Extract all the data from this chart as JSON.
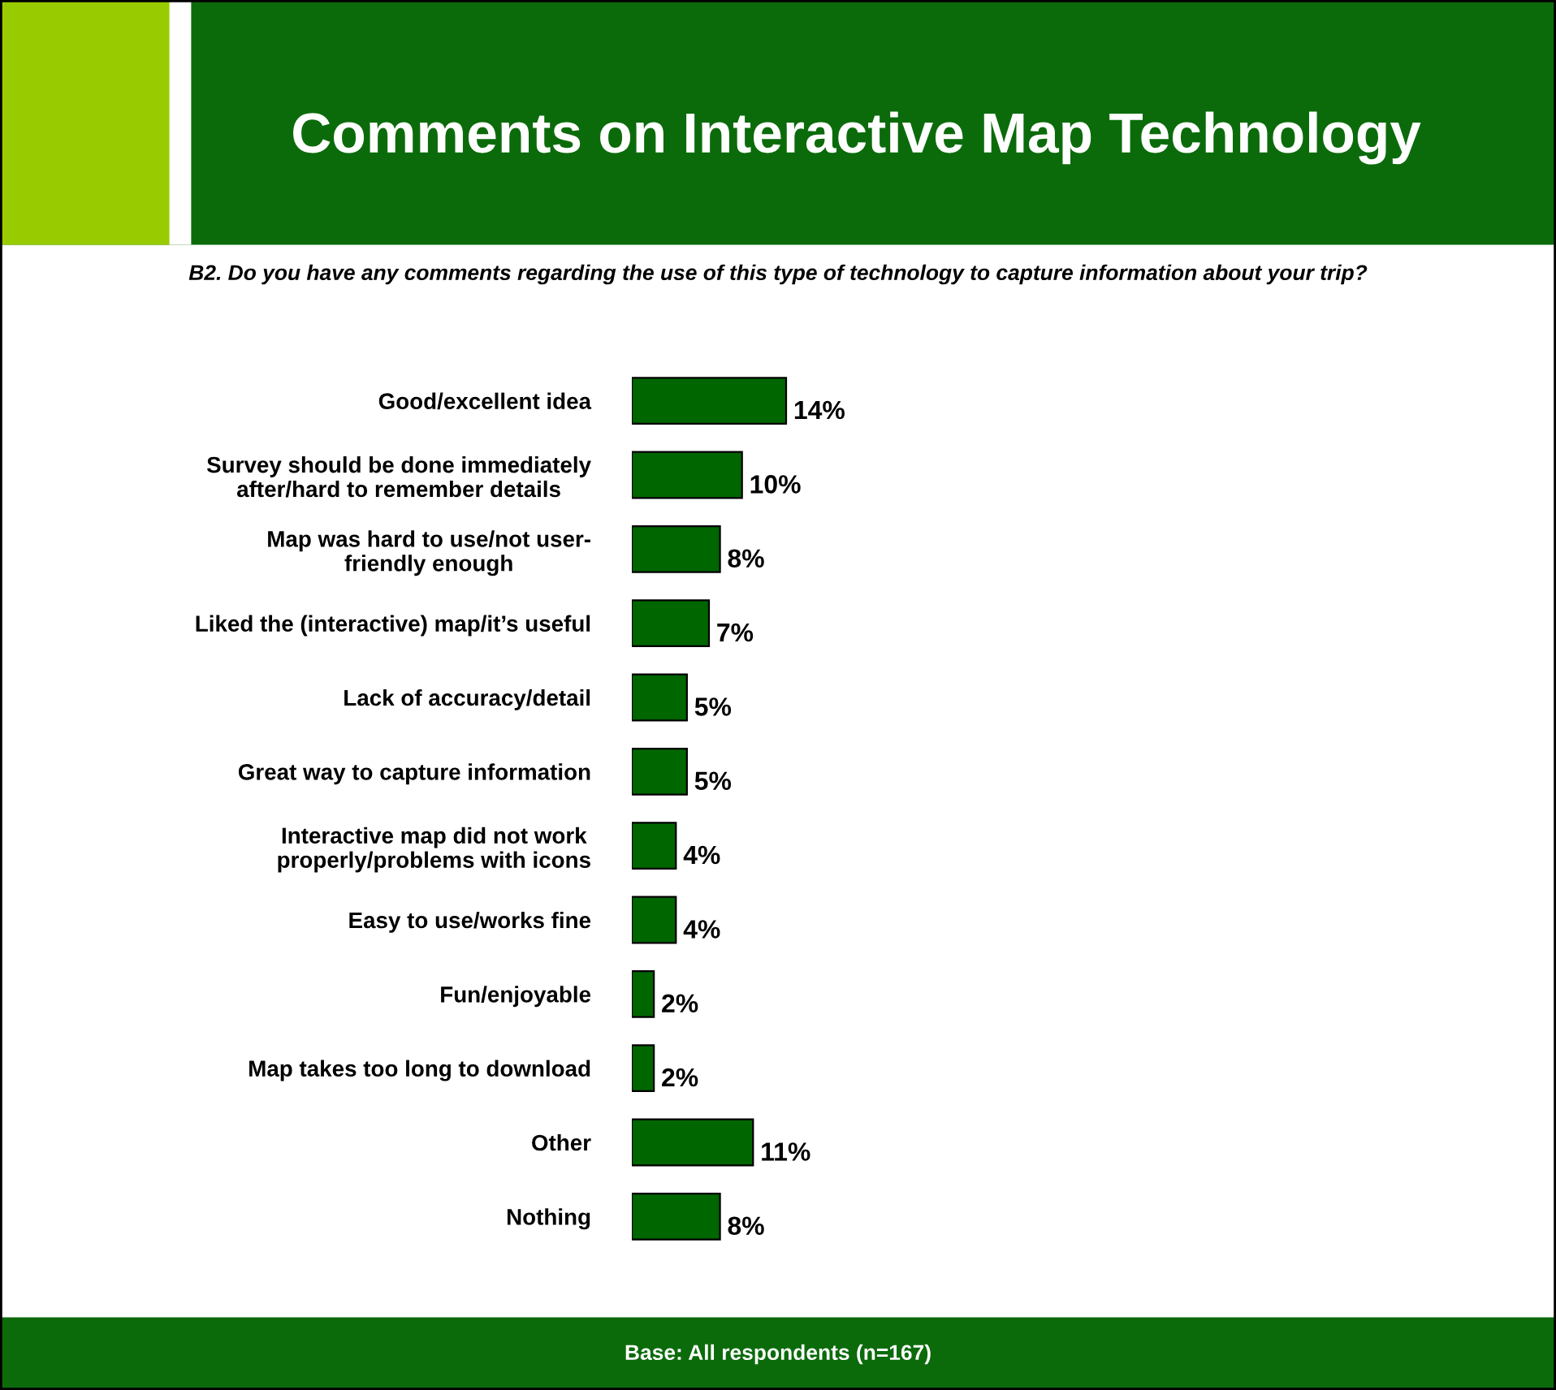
{
  "chart_data": {
    "type": "bar",
    "orientation": "horizontal",
    "title": "Comments on Interactive Map Technology",
    "subtitle": "B2. Do you have any comments regarding the use of this type of technology to capture information about your trip?",
    "categories": [
      "Good/excellent idea",
      "Survey should be done immediately\nafter/hard to remember details",
      "Map was hard to use/not user-\nfriendly enough",
      "Liked the (interactive) map/it’s useful",
      "Lack of accuracy/detail",
      "Great way to capture information",
      "Interactive map did not work\nproperly/problems with icons",
      "Easy to use/works fine",
      "Fun/enjoyable",
      "Map takes too long to download",
      "Other",
      "Nothing"
    ],
    "values": [
      14,
      10,
      8,
      7,
      5,
      5,
      4,
      4,
      2,
      2,
      11,
      8
    ],
    "value_labels": [
      "14%",
      "10%",
      "8%",
      "7%",
      "5%",
      "5%",
      "4%",
      "4%",
      "2%",
      "2%",
      "11%",
      "8%"
    ],
    "color": "#006600",
    "annotations": [
      "Base: All respondents (n=167)"
    ],
    "grid": false,
    "legend": false
  }
}
